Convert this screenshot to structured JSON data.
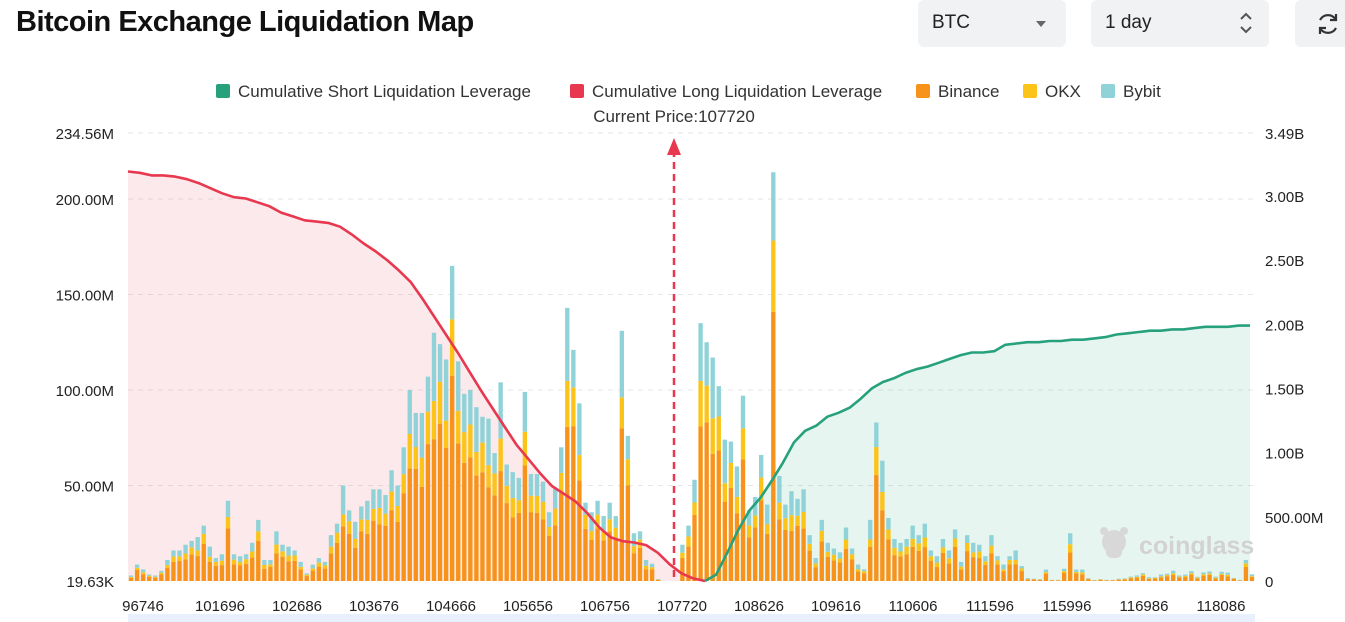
{
  "header": {
    "title": "Bitcoin Exchange Liquidation Map",
    "symbol_select": "BTC",
    "range_select": "1 day"
  },
  "chart_data": {
    "type": "bar",
    "title": "Bitcoin Exchange Liquidation Map",
    "current_price_label": "Current Price:107720",
    "current_price": 107720,
    "legend": [
      {
        "name": "Cumulative Short Liquidation Leverage",
        "color": "#26a17b"
      },
      {
        "name": "Cumulative Long Liquidation Leverage",
        "color": "#e8384f"
      },
      {
        "name": "Binance",
        "color": "#f7931a"
      },
      {
        "name": "OKX",
        "color": "#fcc419"
      },
      {
        "name": "Bybit",
        "color": "#8fd3d8"
      }
    ],
    "x_tick_labels": [
      "96746",
      "101696",
      "102686",
      "103676",
      "104666",
      "105656",
      "106756",
      "107720",
      "108626",
      "109616",
      "110606",
      "111596",
      "115996",
      "116986",
      "118086"
    ],
    "left_axis": {
      "ticks": [
        "19.63K",
        "50.00M",
        "100.00M",
        "150.00M",
        "200.00M",
        "234.56M"
      ],
      "ylim": [
        19630,
        234560000
      ]
    },
    "right_axis": {
      "ticks": [
        "0",
        "500.00M",
        "1.00B",
        "1.50B",
        "2.00B",
        "2.50B",
        "3.00B",
        "3.49B"
      ],
      "ylim": [
        0,
        3490000000
      ]
    },
    "bar_totals_m": [
      2.9,
      8.6,
      6.1,
      3.4,
      2.9,
      5.3,
      11,
      16,
      16,
      19,
      21,
      23,
      29,
      18,
      12,
      14,
      42,
      14,
      13,
      14,
      20,
      32,
      11,
      11,
      26,
      19,
      18,
      16,
      10,
      4.0,
      8.6,
      12,
      10,
      24,
      30,
      50,
      37,
      31,
      39,
      42,
      48,
      48,
      45,
      58,
      50,
      70,
      100,
      88,
      88,
      107,
      130,
      124,
      116,
      165,
      115,
      98,
      100,
      91,
      86,
      85,
      67,
      104,
      61,
      57,
      54,
      99,
      56,
      56,
      52,
      36,
      49,
      70,
      143,
      121,
      93,
      41,
      36,
      42,
      34,
      41,
      34,
      131,
      76,
      25,
      26,
      11,
      9,
      1,
      0,
      0,
      0,
      19,
      29,
      53,
      135,
      125,
      117,
      102,
      74,
      73,
      60,
      97,
      37,
      44,
      66,
      40,
      214,
      55,
      40,
      47,
      43,
      48,
      24,
      12,
      32,
      20,
      17,
      15,
      28,
      17,
      8.6,
      6.1,
      32,
      83,
      63,
      33,
      22,
      20,
      22,
      29,
      24,
      30,
      16,
      13,
      22,
      16,
      27,
      10,
      24,
      20,
      19,
      13,
      24,
      13,
      8.6,
      13,
      16,
      7.8,
      1.5,
      1.2,
      1.0,
      6.0,
      0.6,
      0.6,
      6.4,
      25,
      6.0,
      6.0,
      1.5,
      0.5,
      1.0,
      0.6,
      0.6,
      1.2,
      1.4,
      2.3,
      2.9,
      4.1,
      2.0,
      2.0,
      3.4,
      3.8,
      5.4,
      2.9,
      3.4,
      5.2,
      2.2,
      4.5,
      5.0,
      2.3,
      4.8,
      4.4,
      1.6,
      0.6,
      11,
      3.5
    ],
    "series": [
      {
        "name": "Cumulative Long Liquidation Leverage",
        "x_start": 96746,
        "x_end": 107720,
        "values_b": [
          3.19,
          3.18,
          3.16,
          3.16,
          3.15,
          3.13,
          3.1,
          3.06,
          3.02,
          2.99,
          2.98,
          2.95,
          2.92,
          2.87,
          2.84,
          2.81,
          2.8,
          2.79,
          2.76,
          2.7,
          2.63,
          2.57,
          2.5,
          2.42,
          2.33,
          2.2,
          2.06,
          1.92,
          1.78,
          1.63,
          1.48,
          1.34,
          1.2,
          1.06,
          0.95,
          0.84,
          0.74,
          0.68,
          0.62,
          0.53,
          0.42,
          0.34,
          0.31,
          0.3,
          0.28,
          0.22,
          0.13,
          0.06,
          0.02,
          0
        ]
      },
      {
        "name": "Cumulative Short Liquidation Leverage",
        "x_start": 107720,
        "x_end": 118086,
        "values_b": [
          0,
          0.05,
          0.22,
          0.4,
          0.55,
          0.65,
          0.78,
          0.92,
          1.08,
          1.17,
          1.21,
          1.28,
          1.31,
          1.35,
          1.42,
          1.5,
          1.55,
          1.58,
          1.62,
          1.65,
          1.67,
          1.7,
          1.73,
          1.76,
          1.78,
          1.78,
          1.79,
          1.84,
          1.85,
          1.86,
          1.86,
          1.87,
          1.87,
          1.88,
          1.88,
          1.89,
          1.9,
          1.92,
          1.93,
          1.94,
          1.95,
          1.95,
          1.96,
          1.96,
          1.97,
          1.98,
          1.98,
          1.98,
          1.99,
          1.99
        ]
      }
    ]
  },
  "watermark": "coinglass"
}
